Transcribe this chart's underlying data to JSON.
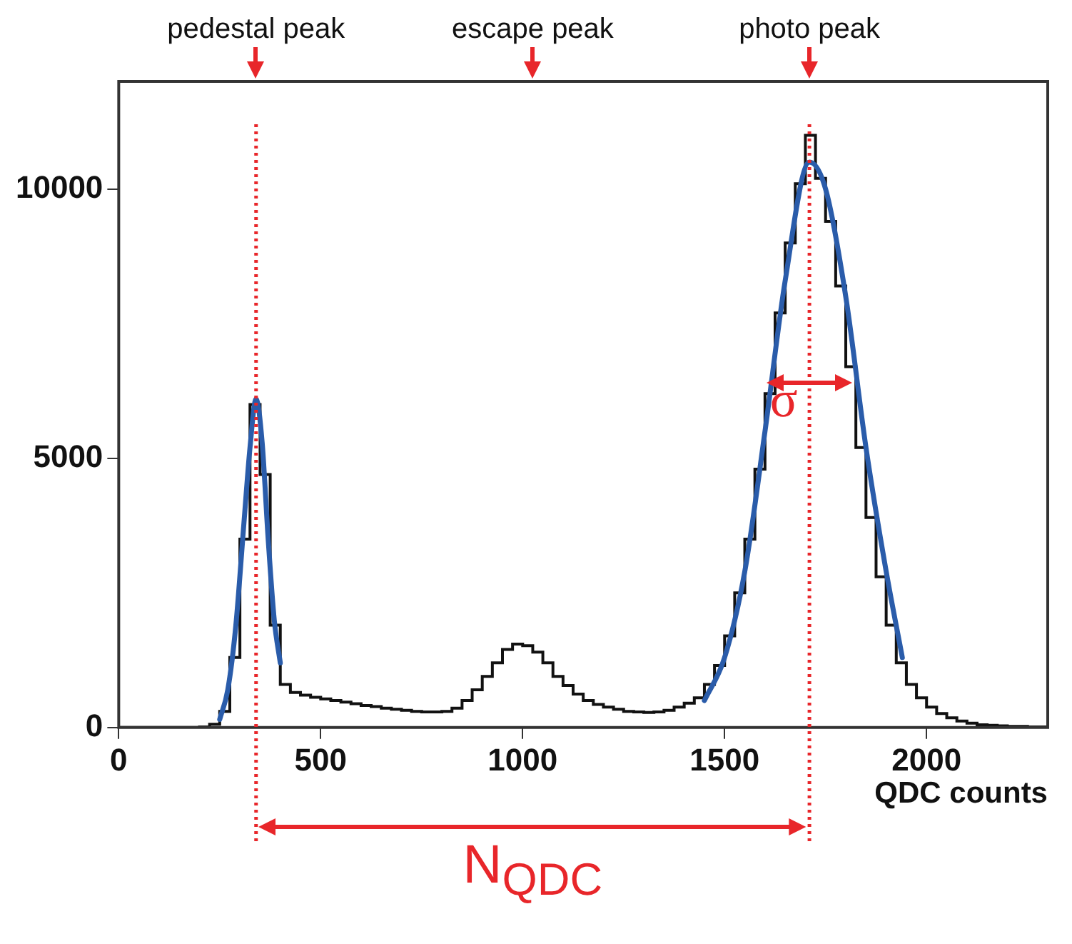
{
  "chart_data": {
    "type": "histogram",
    "xlabel": "QDC counts",
    "xlim": [
      0,
      2300
    ],
    "xticks": [
      0,
      500,
      1000,
      1500,
      2000
    ],
    "ylim": [
      0,
      12000
    ],
    "yticks": [
      0,
      5000,
      10000
    ],
    "grid": false,
    "color": "#111111",
    "bins": [
      0,
      25,
      50,
      75,
      100,
      125,
      150,
      175,
      200,
      225,
      250,
      275,
      300,
      325,
      350,
      375,
      400,
      425,
      450,
      475,
      500,
      525,
      550,
      575,
      600,
      625,
      650,
      675,
      700,
      725,
      750,
      775,
      800,
      825,
      850,
      875,
      900,
      925,
      950,
      975,
      1000,
      1025,
      1050,
      1075,
      1100,
      1125,
      1150,
      1175,
      1200,
      1225,
      1250,
      1275,
      1300,
      1325,
      1350,
      1375,
      1400,
      1425,
      1450,
      1475,
      1500,
      1525,
      1550,
      1575,
      1600,
      1625,
      1650,
      1675,
      1700,
      1725,
      1750,
      1775,
      1800,
      1825,
      1850,
      1875,
      1900,
      1925,
      1950,
      1975,
      2000,
      2025,
      2050,
      2075,
      2100,
      2125,
      2150,
      2175,
      2200,
      2225,
      2250,
      2275,
      2300
    ],
    "values": [
      0,
      0,
      0,
      0,
      0,
      0,
      0,
      0,
      10,
      60,
      300,
      1300,
      3500,
      6000,
      4700,
      1900,
      800,
      650,
      600,
      560,
      530,
      500,
      470,
      440,
      410,
      390,
      360,
      340,
      320,
      300,
      290,
      290,
      300,
      360,
      500,
      700,
      950,
      1200,
      1450,
      1550,
      1520,
      1400,
      1200,
      950,
      780,
      620,
      500,
      430,
      380,
      340,
      300,
      290,
      280,
      290,
      320,
      380,
      450,
      550,
      800,
      1150,
      1700,
      2500,
      3500,
      4800,
      6200,
      7700,
      9000,
      10100,
      11000,
      10200,
      9400,
      8200,
      6700,
      5200,
      3900,
      2800,
      1900,
      1200,
      800,
      550,
      380,
      260,
      180,
      120,
      80,
      50,
      40,
      30,
      20,
      20,
      10,
      10
    ],
    "series": [
      {
        "type": "line",
        "color": "#2a5caa",
        "x": [
          250,
          270,
          290,
          310,
          325,
          340,
          355,
          370,
          385,
          400
        ],
        "values": [
          150,
          700,
          1900,
          3800,
          5200,
          6100,
          5300,
          3500,
          2000,
          1200
        ]
      },
      {
        "type": "line",
        "color": "#2a5caa",
        "x": [
          1450,
          1500,
          1550,
          1600,
          1650,
          1710,
          1750,
          1800,
          1850,
          1900,
          1940
        ],
        "values": [
          500,
          1300,
          2900,
          5500,
          8300,
          10500,
          10000,
          8000,
          5200,
          2900,
          1300
        ]
      }
    ],
    "ref_lines": [
      {
        "axis": "x",
        "value": 340,
        "color": "#e8262a",
        "line_style": "dotted"
      },
      {
        "axis": "x",
        "value": 1710,
        "color": "#e8262a",
        "line_style": "dotted"
      }
    ],
    "annotations": [
      "pedestal peak",
      "escape peak",
      "photo peak",
      {
        "text": "σ",
        "x": 1710,
        "y": 6400
      },
      "N$_{QDC}$"
    ]
  }
}
